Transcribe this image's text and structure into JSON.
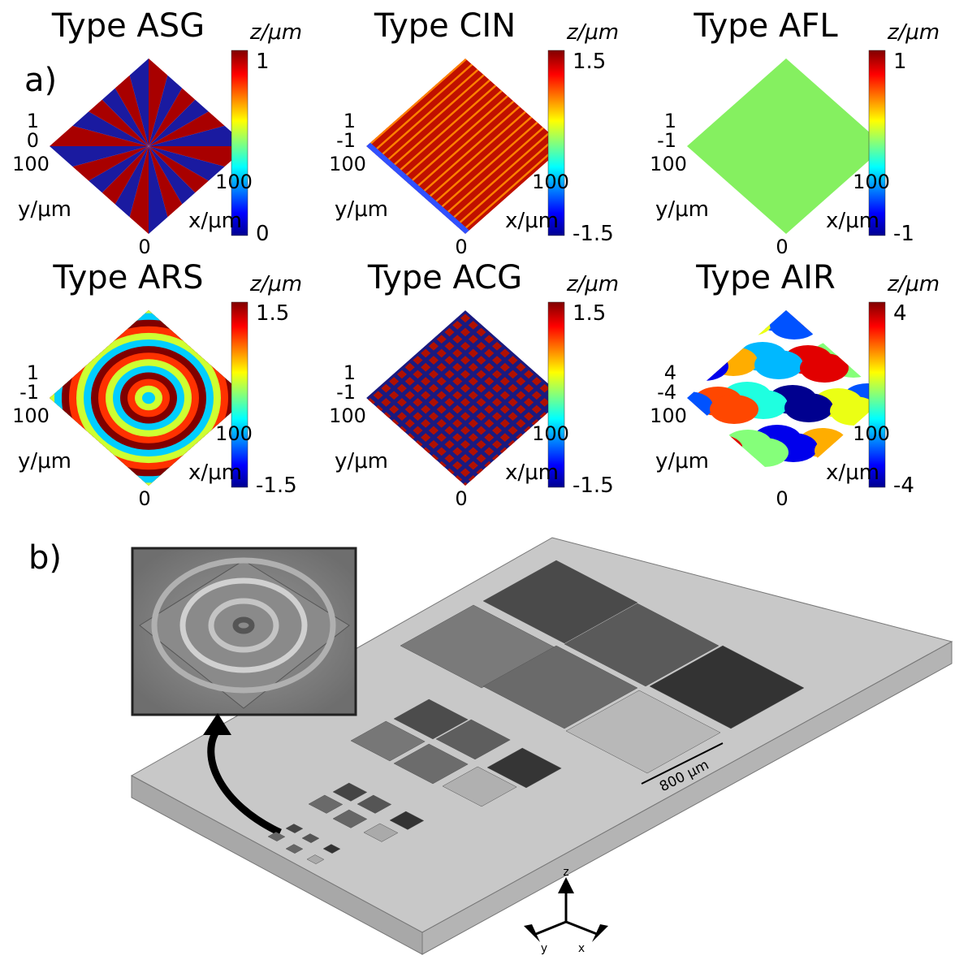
{
  "panel_a": {
    "label": "a)",
    "plots": [
      {
        "title": "Type ASG",
        "z_label": "z/μm",
        "colorbar_max": "1",
        "colorbar_min": "0",
        "z_ticks": [
          "1",
          "0"
        ],
        "y_tick": "100",
        "x_tick": "100",
        "origin": "0",
        "y_label": "y/μm",
        "x_label": "x/μm"
      },
      {
        "title": "Type CIN",
        "z_label": "z/μm",
        "colorbar_max": "1.5",
        "colorbar_min": "-1.5",
        "z_ticks": [
          "1",
          "-1"
        ],
        "y_tick": "100",
        "x_tick": "100",
        "origin": "0",
        "y_label": "y/μm",
        "x_label": "x/μm"
      },
      {
        "title": "Type AFL",
        "z_label": "z/μm",
        "colorbar_max": "1",
        "colorbar_min": "-1",
        "z_ticks": [
          "1",
          "-1"
        ],
        "y_tick": "100",
        "x_tick": "100",
        "origin": "0",
        "y_label": "y/μm",
        "x_label": "x/μm"
      },
      {
        "title": "Type ARS",
        "z_label": "z/μm",
        "colorbar_max": "1.5",
        "colorbar_min": "-1.5",
        "z_ticks": [
          "1",
          "-1"
        ],
        "y_tick": "100",
        "x_tick": "100",
        "origin": "0",
        "y_label": "y/μm",
        "x_label": "x/μm"
      },
      {
        "title": "Type ACG",
        "z_label": "z/μm",
        "colorbar_max": "1.5",
        "colorbar_min": "-1.5",
        "z_ticks": [
          "1",
          "-1"
        ],
        "y_tick": "100",
        "x_tick": "100",
        "origin": "0",
        "y_label": "y/μm",
        "x_label": "x/μm"
      },
      {
        "title": "Type AIR",
        "z_label": "z/μm",
        "colorbar_max": "4",
        "colorbar_min": "-4",
        "z_ticks": [
          "4",
          "-4"
        ],
        "y_tick": "100",
        "x_tick": "100",
        "origin": "0",
        "y_label": "y/μm",
        "x_label": "x/μm"
      }
    ]
  },
  "panel_b": {
    "label": "b)",
    "scale_label": "800 µm",
    "axes": [
      "z",
      "y",
      "x"
    ]
  }
}
